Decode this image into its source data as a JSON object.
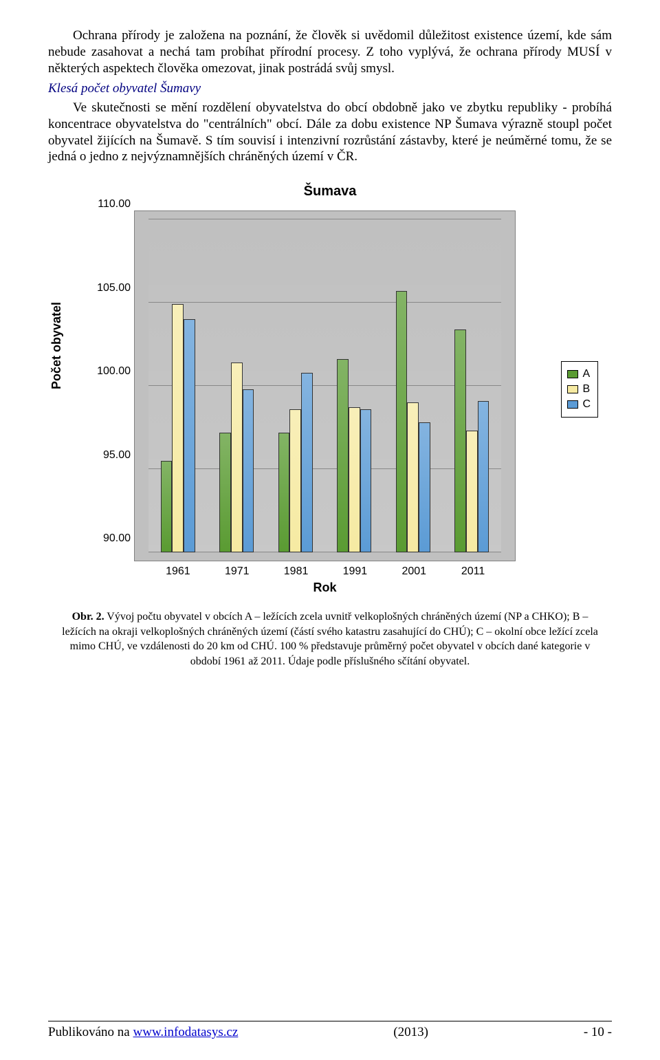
{
  "paragraphs": {
    "p1": "Ochrana přírody je založena na poznání, že člověk si uvědomil důležitost existence území, kde sám nebude zasahovat a nechá tam probíhat přírodní procesy. Z toho vyplývá, že ochrana přírody MUSÍ v některých aspektech člověka omezovat, jinak postrádá svůj smysl."
  },
  "heading": "Klesá počet obyvatel Šumavy",
  "paragraphs2": {
    "p2": "Ve skutečnosti se mění rozdělení obyvatelstva do obcí obdobně jako ve zbytku republiky - probíhá koncentrace obyvatelstva do \"centrálních\" obcí. Dále za dobu existence NP Šumava výrazně stoupl počet obyvatel žijících na Šumavě. S tím souvisí i intenzivní rozrůstání zástavby, které je neúměrné tomu, že se jedná o jedno z nejvýznamnějších chráněných území v ČR."
  },
  "chart": {
    "type": "bar",
    "title": "Šumava",
    "ylabel": "Počet obyvatel",
    "xlabel": "Rok",
    "categories": [
      "1961",
      "1971",
      "1981",
      "1991",
      "2001",
      "2011"
    ],
    "series": [
      {
        "key": "A",
        "color": "#5a9b32",
        "values": [
          95.5,
          97.2,
          97.2,
          101.6,
          105.7,
          103.4
        ]
      },
      {
        "key": "B",
        "color": "#f6eaa2",
        "values": [
          104.9,
          101.4,
          98.6,
          98.7,
          99.0,
          97.3
        ]
      },
      {
        "key": "C",
        "color": "#5b9bd5",
        "values": [
          104.0,
          99.8,
          100.8,
          98.6,
          97.8,
          99.1
        ]
      }
    ],
    "ylim": [
      90,
      110
    ],
    "yticks": [
      90.0,
      95.0,
      100.0,
      105.0,
      110.0
    ],
    "ytick_labels": [
      "90.00",
      "95.00",
      "100.00",
      "105.00",
      "110.00"
    ],
    "bar_group_width": 0.58,
    "colors": {
      "plot_bg": "#c0c0c0",
      "grid": "#888888"
    }
  },
  "caption_strong": "Obr. 2.",
  "caption": "Vývoj počtu obyvatel v obcích A – ležících zcela uvnitř velkoplošných chráněných území (NP a CHKO); B – ležících na okraji velkoplošných chráněných území (částí svého katastru zasahující do CHÚ); C – okolní obce ležící zcela mimo CHÚ, ve vzdálenosti do 20 km od CHÚ. 100 % představuje průměrný počet obyvatel v obcích dané kategorie v období 1961 až 2011. Údaje podle příslušného sčítání obyvatel.",
  "footer": {
    "left_prefix": "Publikováno na ",
    "left_link": "www.infodatasys.cz",
    "center": "(2013)",
    "right": "- 10 -"
  }
}
